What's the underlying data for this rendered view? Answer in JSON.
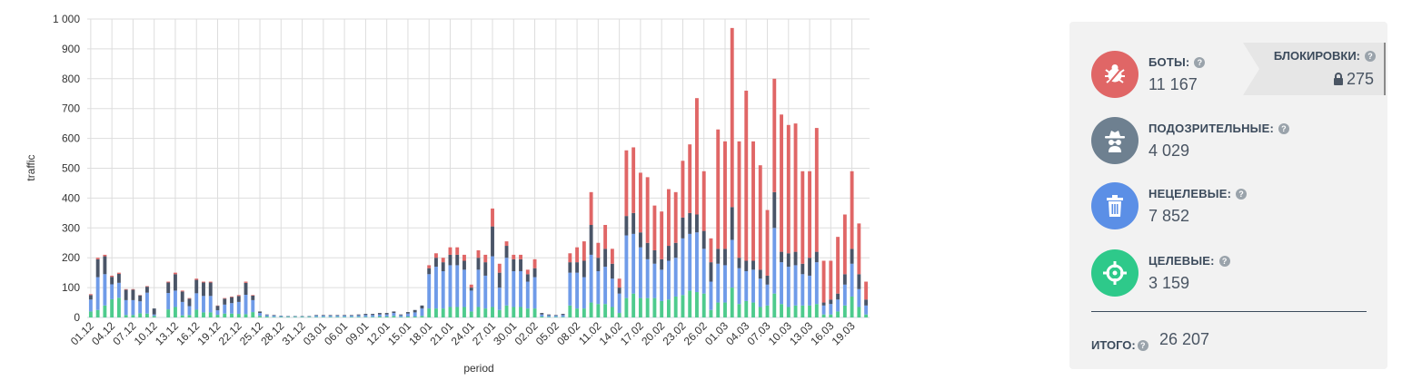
{
  "chart_data": {
    "type": "bar",
    "stacked": true,
    "xlabel": "period",
    "ylabel": "traffic",
    "ylim": [
      0,
      1000
    ],
    "yticks": [
      0,
      100,
      200,
      300,
      400,
      500,
      600,
      700,
      800,
      900,
      1000
    ],
    "ytick_labels": [
      "0",
      "100",
      "200",
      "300",
      "400",
      "500",
      "600",
      "700",
      "800",
      "900",
      "1 000"
    ],
    "grid": true,
    "x_tick_labels": [
      "01.12",
      "04.12",
      "07.12",
      "10.12",
      "13.12",
      "16.12",
      "19.12",
      "22.12",
      "25.12",
      "28.12",
      "31.12",
      "03.01",
      "06.01",
      "09.01",
      "12.01",
      "15.01",
      "18.01",
      "21.01",
      "24.01",
      "27.01",
      "30.01",
      "02.02",
      "05.02",
      "08.02",
      "11.02",
      "14.02",
      "17.02",
      "20.02",
      "23.02",
      "26.02",
      "01.03",
      "04.03",
      "07.03",
      "10.03",
      "13.03",
      "16.03",
      "19.03"
    ],
    "series_colors": {
      "targeted": "#4ecb8d",
      "nontargeted": "#6f9be8",
      "suspicious": "#4a5568",
      "bots": "#e06666"
    },
    "totals": [
      78,
      200,
      210,
      140,
      150,
      95,
      95,
      75,
      105,
      30,
      0,
      120,
      150,
      90,
      65,
      130,
      120,
      120,
      40,
      65,
      70,
      75,
      120,
      75,
      20,
      10,
      8,
      6,
      5,
      5,
      5,
      5,
      8,
      8,
      8,
      8,
      8,
      8,
      10,
      12,
      12,
      15,
      15,
      20,
      10,
      18,
      25,
      40,
      175,
      215,
      200,
      235,
      235,
      210,
      110,
      225,
      210,
      365,
      180,
      255,
      210,
      210,
      160,
      195,
      15,
      10,
      8,
      12,
      215,
      235,
      255,
      420,
      250,
      310,
      230,
      130,
      560,
      570,
      485,
      470,
      375,
      355,
      430,
      420,
      525,
      580,
      735,
      490,
      265,
      630,
      590,
      970,
      590,
      760,
      590,
      510,
      360,
      800,
      680,
      645,
      650,
      490,
      490,
      635,
      190,
      190,
      270,
      345,
      490,
      315,
      120
    ],
    "bots": [
      3,
      5,
      5,
      4,
      4,
      2,
      2,
      1,
      2,
      0,
      0,
      3,
      5,
      3,
      2,
      4,
      3,
      3,
      1,
      2,
      2,
      3,
      4,
      2,
      0,
      0,
      0,
      0,
      0,
      0,
      0,
      0,
      0,
      0,
      0,
      0,
      0,
      0,
      0,
      0,
      0,
      0,
      0,
      0,
      0,
      0,
      0,
      0,
      10,
      15,
      15,
      25,
      25,
      20,
      10,
      25,
      25,
      60,
      30,
      15,
      15,
      15,
      15,
      30,
      0,
      0,
      0,
      0,
      30,
      50,
      65,
      110,
      50,
      80,
      50,
      30,
      220,
      220,
      200,
      220,
      150,
      160,
      190,
      170,
      190,
      230,
      390,
      200,
      80,
      400,
      360,
      600,
      390,
      570,
      400,
      350,
      220,
      380,
      460,
      430,
      430,
      310,
      290,
      415,
      140,
      130,
      190,
      200,
      260,
      170,
      60
    ],
    "suspicious": [
      15,
      60,
      60,
      25,
      30,
      35,
      35,
      20,
      20,
      20,
      0,
      35,
      55,
      35,
      25,
      45,
      45,
      45,
      15,
      20,
      20,
      20,
      40,
      15,
      5,
      2,
      2,
      1,
      1,
      1,
      1,
      1,
      2,
      2,
      2,
      2,
      2,
      2,
      3,
      4,
      4,
      5,
      5,
      5,
      3,
      5,
      8,
      10,
      20,
      30,
      30,
      35,
      35,
      30,
      10,
      40,
      45,
      100,
      50,
      40,
      40,
      40,
      25,
      30,
      5,
      3,
      2,
      4,
      35,
      35,
      55,
      100,
      45,
      60,
      50,
      20,
      65,
      70,
      50,
      55,
      45,
      35,
      50,
      50,
      70,
      70,
      60,
      60,
      65,
      50,
      55,
      110,
      35,
      35,
      30,
      30,
      30,
      120,
      35,
      45,
      45,
      35,
      60,
      35,
      10,
      15,
      20,
      35,
      50,
      50,
      20
    ],
    "nontargeted": [
      40,
      110,
      105,
      50,
      50,
      50,
      50,
      40,
      70,
      5,
      0,
      55,
      55,
      45,
      30,
      55,
      55,
      55,
      15,
      30,
      35,
      40,
      65,
      40,
      10,
      5,
      4,
      3,
      2,
      2,
      2,
      2,
      4,
      4,
      4,
      4,
      4,
      4,
      5,
      6,
      6,
      7,
      7,
      10,
      5,
      10,
      14,
      25,
      115,
      140,
      125,
      140,
      140,
      125,
      70,
      125,
      110,
      170,
      75,
      160,
      120,
      120,
      90,
      105,
      7,
      5,
      4,
      6,
      110,
      120,
      105,
      160,
      110,
      125,
      95,
      65,
      210,
      200,
      170,
      130,
      115,
      105,
      130,
      130,
      190,
      190,
      200,
      150,
      95,
      130,
      125,
      160,
      120,
      100,
      110,
      95,
      70,
      220,
      140,
      135,
      135,
      105,
      100,
      140,
      30,
      35,
      40,
      70,
      110,
      60,
      30
    ],
    "targeted": [
      20,
      25,
      40,
      61,
      66,
      8,
      8,
      14,
      13,
      5,
      0,
      27,
      35,
      7,
      8,
      26,
      17,
      17,
      9,
      13,
      13,
      12,
      11,
      18,
      5,
      3,
      2,
      2,
      2,
      2,
      2,
      2,
      2,
      2,
      2,
      2,
      2,
      2,
      2,
      2,
      2,
      3,
      3,
      5,
      2,
      3,
      3,
      5,
      30,
      30,
      30,
      35,
      35,
      35,
      20,
      35,
      30,
      35,
      25,
      40,
      35,
      35,
      30,
      30,
      3,
      2,
      2,
      2,
      40,
      30,
      30,
      50,
      45,
      45,
      35,
      15,
      65,
      80,
      65,
      65,
      65,
      55,
      60,
      70,
      75,
      90,
      85,
      80,
      25,
      50,
      50,
      100,
      45,
      55,
      50,
      35,
      40,
      80,
      45,
      35,
      40,
      40,
      40,
      45,
      10,
      10,
      20,
      40,
      70,
      35,
      10
    ],
    "sidebar": {
      "bots": {
        "label": "БОТЫ:",
        "value": "11 167"
      },
      "blocks": {
        "label": "БЛОКИРОВКИ:",
        "value": "275"
      },
      "suspicious": {
        "label": "ПОДОЗРИТЕЛЬНЫЕ:",
        "value": "4 029"
      },
      "nontargeted": {
        "label": "НЕЦЕЛЕВЫЕ:",
        "value": "7 852"
      },
      "targeted": {
        "label": "ЦЕЛЕВЫЕ:",
        "value": "3 159"
      },
      "total": {
        "label": "ИТОГО:",
        "value": "26 207"
      }
    }
  },
  "help_glyph": "?",
  "icons": {
    "bots": "bot-bug-icon",
    "blocks": "lock-icon",
    "suspicious": "spy-icon",
    "nontargeted": "trash-icon",
    "targeted": "target-icon",
    "help": "question-icon"
  },
  "colors": {
    "bots_circle": "#e06666",
    "suspicious_circle": "#6e8090",
    "nontargeted_circle": "#5b8fe6",
    "targeted_circle": "#2ec98a"
  }
}
